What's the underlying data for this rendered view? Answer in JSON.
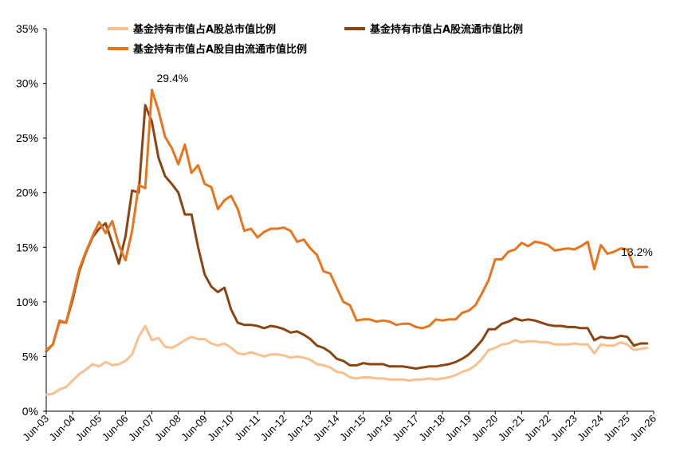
{
  "chart_data": {
    "type": "line",
    "title": "",
    "xlabel": "",
    "ylabel": "",
    "ylim": [
      0,
      35
    ],
    "y_ticks": [
      "0%",
      "5%",
      "10%",
      "15%",
      "20%",
      "25%",
      "30%",
      "35%"
    ],
    "x_tick_labels": [
      "Jun-03",
      "Jun-04",
      "Jun-05",
      "Jun-06",
      "Jun-07",
      "Jun-08",
      "Jun-09",
      "Jun-10",
      "Jun-11",
      "Jun-12",
      "Jun-13",
      "Jun-14",
      "Jun-15",
      "Jun-16",
      "Jun-17",
      "Jun-18",
      "Jun-19",
      "Jun-20",
      "Jun-21",
      "Jun-22",
      "Jun-23",
      "Jun-24",
      "Jun-25",
      "Jun-26"
    ],
    "x_range": [
      2003.5,
      2026.5
    ],
    "grid": false,
    "legend_position": "top",
    "series": [
      {
        "name": "基金持有市值占A股总市值比例",
        "color": "#F9C08F",
        "x": [
          2003.5,
          2003.75,
          2004.0,
          2004.25,
          2004.5,
          2004.75,
          2005.0,
          2005.25,
          2005.5,
          2005.75,
          2006.0,
          2006.25,
          2006.5,
          2006.75,
          2007.0,
          2007.25,
          2007.5,
          2007.75,
          2008.0,
          2008.25,
          2008.5,
          2008.75,
          2009.0,
          2009.25,
          2009.5,
          2009.75,
          2010.0,
          2010.25,
          2010.5,
          2010.75,
          2011.0,
          2011.25,
          2011.5,
          2011.75,
          2012.0,
          2012.25,
          2012.5,
          2012.75,
          2013.0,
          2013.25,
          2013.5,
          2013.75,
          2014.0,
          2014.25,
          2014.5,
          2014.75,
          2015.0,
          2015.25,
          2015.5,
          2015.75,
          2016.0,
          2016.25,
          2016.5,
          2016.75,
          2017.0,
          2017.25,
          2017.5,
          2017.75,
          2018.0,
          2018.25,
          2018.5,
          2018.75,
          2019.0,
          2019.25,
          2019.5,
          2019.75,
          2020.0,
          2020.25,
          2020.5,
          2020.75,
          2021.0,
          2021.25,
          2021.5,
          2021.75,
          2022.0,
          2022.25,
          2022.5,
          2022.75,
          2023.0,
          2023.25,
          2023.5,
          2023.75,
          2024.0,
          2024.25,
          2024.5,
          2024.75,
          2025.0,
          2025.25,
          2025.5,
          2025.75,
          2026.0,
          2026.25
        ],
        "values": [
          1.5,
          1.6,
          2.0,
          2.2,
          2.8,
          3.4,
          3.8,
          4.3,
          4.1,
          4.5,
          4.2,
          4.3,
          4.6,
          5.2,
          6.8,
          7.8,
          6.5,
          6.7,
          5.9,
          5.8,
          6.1,
          6.5,
          6.8,
          6.6,
          6.6,
          6.2,
          6.0,
          6.2,
          5.8,
          5.3,
          5.2,
          5.4,
          5.2,
          5.0,
          5.2,
          5.2,
          5.1,
          4.9,
          5.0,
          4.9,
          4.7,
          4.3,
          4.2,
          4.0,
          3.6,
          3.5,
          3.1,
          3.0,
          3.1,
          3.1,
          3.0,
          3.0,
          2.9,
          2.9,
          2.9,
          2.8,
          2.9,
          2.9,
          3.0,
          2.9,
          3.0,
          3.1,
          3.3,
          3.6,
          3.8,
          4.2,
          4.8,
          5.6,
          5.8,
          6.1,
          6.2,
          6.5,
          6.3,
          6.4,
          6.4,
          6.3,
          6.3,
          6.1,
          6.1,
          6.1,
          6.2,
          6.1,
          6.1,
          5.3,
          6.1,
          6.0,
          6.0,
          6.3,
          6.1,
          5.6,
          5.7,
          5.8
        ]
      },
      {
        "name": "基金持有市值占A股流通市值比例",
        "color": "#8B4513",
        "x": [
          2003.5,
          2003.75,
          2004.0,
          2004.25,
          2004.5,
          2004.75,
          2005.0,
          2005.25,
          2005.5,
          2005.75,
          2006.0,
          2006.25,
          2006.5,
          2006.75,
          2007.0,
          2007.25,
          2007.5,
          2007.75,
          2008.0,
          2008.25,
          2008.5,
          2008.75,
          2009.0,
          2009.25,
          2009.5,
          2009.75,
          2010.0,
          2010.25,
          2010.5,
          2010.75,
          2011.0,
          2011.25,
          2011.5,
          2011.75,
          2012.0,
          2012.25,
          2012.5,
          2012.75,
          2013.0,
          2013.25,
          2013.5,
          2013.75,
          2014.0,
          2014.25,
          2014.5,
          2014.75,
          2015.0,
          2015.25,
          2015.5,
          2015.75,
          2016.0,
          2016.25,
          2016.5,
          2016.75,
          2017.0,
          2017.25,
          2017.5,
          2017.75,
          2018.0,
          2018.25,
          2018.5,
          2018.75,
          2019.0,
          2019.25,
          2019.5,
          2019.75,
          2020.0,
          2020.25,
          2020.5,
          2020.75,
          2021.0,
          2021.25,
          2021.5,
          2021.75,
          2022.0,
          2022.25,
          2022.5,
          2022.75,
          2023.0,
          2023.25,
          2023.5,
          2023.75,
          2024.0,
          2024.25,
          2024.5,
          2024.75,
          2025.0,
          2025.25,
          2025.5,
          2025.75,
          2026.0,
          2026.25
        ],
        "values": [
          5.5,
          6.1,
          8.2,
          8.1,
          10.2,
          12.8,
          14.5,
          15.9,
          16.7,
          17.2,
          15.4,
          13.5,
          16.0,
          20.2,
          20.0,
          28.0,
          26.5,
          23.2,
          21.5,
          20.8,
          20.0,
          18.0,
          18.0,
          15.0,
          12.5,
          11.4,
          10.9,
          11.3,
          9.3,
          8.1,
          7.9,
          7.9,
          7.8,
          7.6,
          7.8,
          7.7,
          7.5,
          7.2,
          7.3,
          7.0,
          6.6,
          6.0,
          5.8,
          5.4,
          4.8,
          4.6,
          4.2,
          4.2,
          4.4,
          4.3,
          4.3,
          4.3,
          4.1,
          4.1,
          4.1,
          4.0,
          3.9,
          4.0,
          4.1,
          4.1,
          4.2,
          4.3,
          4.5,
          4.8,
          5.2,
          5.8,
          6.5,
          7.5,
          7.5,
          8.0,
          8.2,
          8.5,
          8.3,
          8.4,
          8.3,
          8.1,
          7.9,
          7.8,
          7.8,
          7.7,
          7.7,
          7.6,
          7.6,
          6.5,
          6.8,
          6.7,
          6.7,
          6.9,
          6.8,
          6.0,
          6.2,
          6.2
        ]
      },
      {
        "name": "基金持有市值占A股自由流通市值比例",
        "color": "#E8741E",
        "x": [
          2003.5,
          2003.75,
          2004.0,
          2004.25,
          2004.5,
          2004.75,
          2005.0,
          2005.25,
          2005.5,
          2005.75,
          2006.0,
          2006.25,
          2006.5,
          2006.75,
          2007.0,
          2007.25,
          2007.5,
          2007.75,
          2008.0,
          2008.25,
          2008.5,
          2008.75,
          2009.0,
          2009.25,
          2009.5,
          2009.75,
          2010.0,
          2010.25,
          2010.5,
          2010.75,
          2011.0,
          2011.25,
          2011.5,
          2011.75,
          2012.0,
          2012.25,
          2012.5,
          2012.75,
          2013.0,
          2013.25,
          2013.5,
          2013.75,
          2014.0,
          2014.25,
          2014.5,
          2014.75,
          2015.0,
          2015.25,
          2015.5,
          2015.75,
          2016.0,
          2016.25,
          2016.5,
          2016.75,
          2017.0,
          2017.25,
          2017.5,
          2017.75,
          2018.0,
          2018.25,
          2018.5,
          2018.75,
          2019.0,
          2019.25,
          2019.5,
          2019.75,
          2020.0,
          2020.25,
          2020.5,
          2020.75,
          2021.0,
          2021.25,
          2021.5,
          2021.75,
          2022.0,
          2022.25,
          2022.5,
          2022.75,
          2023.0,
          2023.25,
          2023.5,
          2023.75,
          2024.0,
          2024.25,
          2024.5,
          2024.75,
          2025.0,
          2025.25,
          2025.5,
          2025.75,
          2026.0,
          2026.25
        ],
        "values": [
          5.6,
          6.1,
          8.3,
          8.1,
          10.5,
          13.0,
          14.6,
          16.0,
          17.3,
          16.3,
          17.4,
          15.2,
          13.8,
          16.5,
          20.7,
          20.4,
          29.4,
          27.5,
          25.1,
          24.1,
          22.6,
          24.4,
          21.8,
          22.5,
          20.8,
          20.5,
          18.5,
          19.3,
          19.7,
          18.5,
          16.5,
          16.7,
          15.9,
          16.4,
          16.7,
          16.7,
          16.8,
          16.5,
          15.5,
          15.7,
          14.9,
          14.3,
          12.8,
          12.6,
          11.3,
          10.0,
          9.7,
          8.3,
          8.4,
          8.4,
          8.2,
          8.3,
          8.2,
          7.9,
          8.0,
          8.0,
          7.7,
          7.6,
          7.8,
          8.4,
          8.3,
          8.4,
          8.4,
          9.0,
          9.2,
          9.7,
          10.8,
          12.0,
          13.9,
          13.9,
          14.6,
          14.8,
          15.4,
          15.1,
          15.5,
          15.4,
          15.2,
          14.7,
          14.8,
          14.9,
          14.8,
          15.1,
          15.5,
          13.0,
          15.2,
          14.4,
          14.6,
          14.9,
          14.8,
          13.2,
          13.2,
          13.2
        ]
      }
    ],
    "annotations": [
      {
        "text": "29.4%",
        "x": 2007.5,
        "y": 29.4
      },
      {
        "text": "13.2%",
        "x": 2025.75,
        "y": 13.2
      }
    ]
  }
}
